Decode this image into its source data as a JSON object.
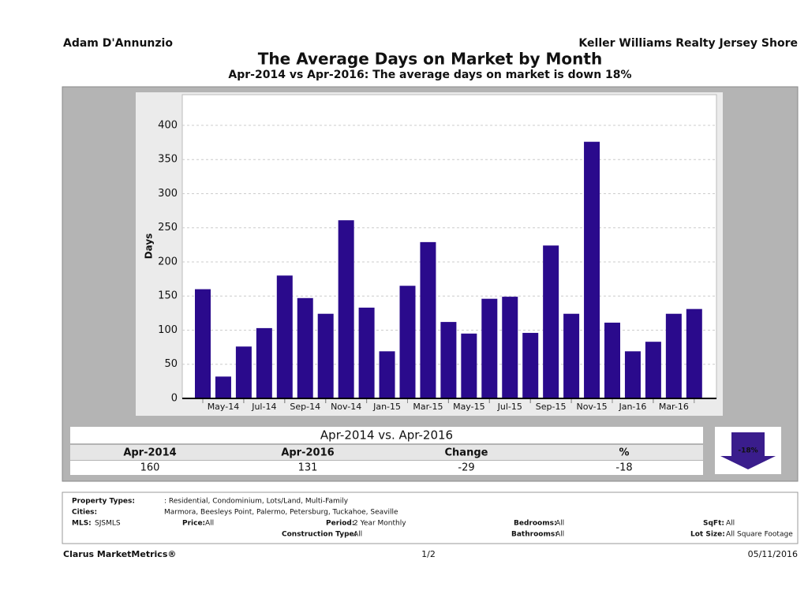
{
  "header": {
    "left": "Adam D'Annunzio",
    "right": "Keller Williams Realty Jersey Shore"
  },
  "chart_data": {
    "type": "bar",
    "title": "The Average Days on Market by Month",
    "subtitle": "Apr-2014 vs Apr-2016: The average days on market is down 18%",
    "y_label": "Days",
    "categories": [
      null,
      "May-14",
      null,
      "Jul-14",
      null,
      "Sep-14",
      null,
      "Nov-14",
      null,
      "Jan-15",
      null,
      "Mar-15",
      null,
      "May-15",
      null,
      "Jul-15",
      null,
      "Sep-15",
      null,
      "Nov-15",
      null,
      "Jan-16",
      null,
      "Mar-16",
      null
    ],
    "values": [
      160,
      32,
      76,
      103,
      180,
      147,
      124,
      261,
      133,
      69,
      165,
      229,
      112,
      95,
      146,
      149,
      96,
      224,
      124,
      376,
      111,
      69,
      83,
      124,
      131
    ],
    "color": "#2a0a8c",
    "ylim": [
      0,
      445
    ],
    "yticks": [
      0,
      50,
      100,
      150,
      200,
      250,
      300,
      350,
      400
    ],
    "grid": true
  },
  "summary": {
    "title": "Apr-2014 vs. Apr-2016",
    "headers": [
      "Apr-2014",
      "Apr-2016",
      "Change",
      "%"
    ],
    "values": [
      160,
      131,
      -29,
      -18
    ],
    "badge": "-18%"
  },
  "filters": [
    {
      "label": "Property Types:",
      "value": ": Residential, Condominium, Lots/Land, Multi-Family"
    },
    {
      "label": "Cities:",
      "value": "Marmora, Beesleys Point, Palermo, Petersburg, Tuckahoe, Seaville"
    },
    {
      "label": "MLS:",
      "value": "SJSMLS"
    },
    {
      "label": "Price:",
      "value": "All"
    },
    {
      "label": "Period:",
      "value": "2 Year Monthly"
    },
    {
      "label": "Bedrooms:",
      "value": "All"
    },
    {
      "label": "SqFt:",
      "value": "All"
    },
    {
      "label": "Construction Type:",
      "value": "All"
    },
    {
      "label": "Bathrooms:",
      "value": "All"
    },
    {
      "label": "Lot Size:",
      "value": "All Square Footage"
    }
  ],
  "footer": {
    "left": "Clarus MarketMetrics®",
    "center": "1/2",
    "right": "05/11/2016"
  }
}
